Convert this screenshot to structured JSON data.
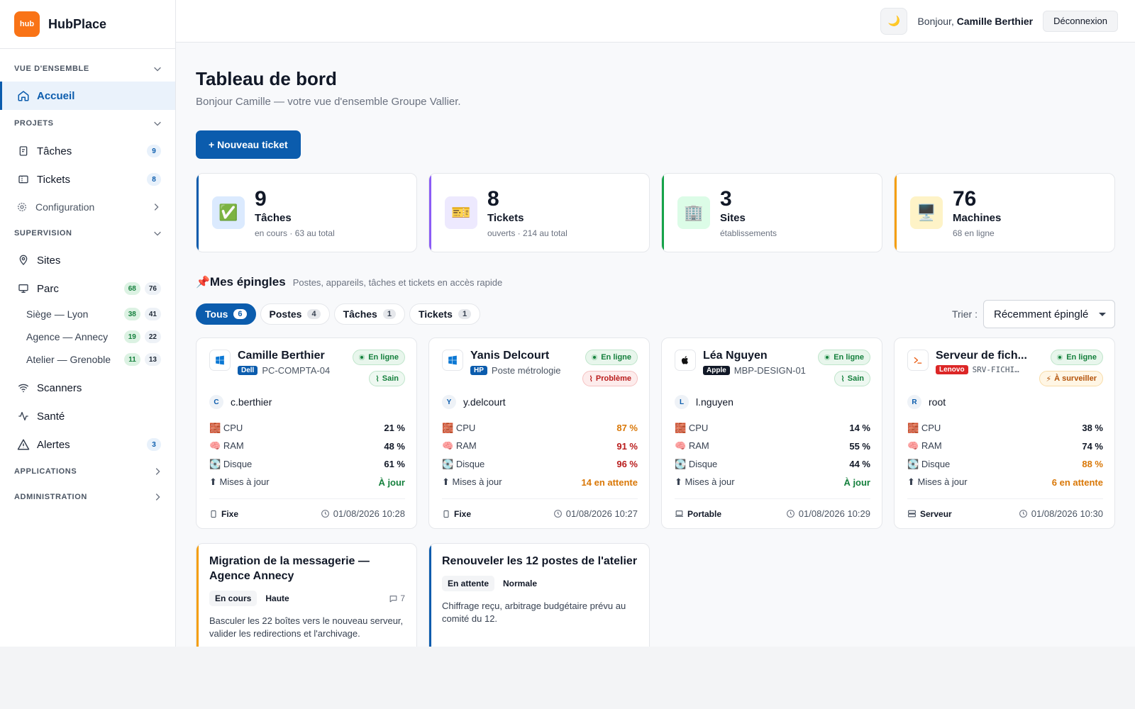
{
  "brand": {
    "logo": "hub",
    "name": "HubPlace"
  },
  "sidebar": {
    "sections": {
      "overview": "VUE D'ENSEMBLE",
      "projects": "PROJETS",
      "supervision": "SUPERVISION",
      "applications": "APPLICATIONS",
      "administration": "ADMINISTRATION"
    },
    "items": {
      "home": "Accueil",
      "tasks": {
        "label": "Tâches",
        "count": "9"
      },
      "tickets": {
        "label": "Tickets",
        "count": "8"
      },
      "config": "Configuration",
      "sites": "Sites",
      "parc": {
        "label": "Parc",
        "online": "68",
        "total": "76"
      },
      "sub": [
        {
          "label": "Siège — Lyon",
          "online": "38",
          "total": "41"
        },
        {
          "label": "Agence — Annecy",
          "online": "19",
          "total": "22"
        },
        {
          "label": "Atelier — Grenoble",
          "online": "11",
          "total": "13"
        }
      ],
      "scanners": "Scanners",
      "health": "Santé",
      "alerts": {
        "label": "Alertes",
        "count": "3"
      }
    }
  },
  "topbar": {
    "theme_icon": "moon",
    "greeting": "Bonjour,",
    "user": "Camille Berthier",
    "logout": "Déconnexion"
  },
  "page": {
    "title": "Tableau de bord",
    "subtitle": "Bonjour Camille — votre vue d'ensemble Groupe Vallier.",
    "new_ticket": "+ Nouveau ticket"
  },
  "stats": [
    {
      "emoji": "✅",
      "value": "9",
      "label": "Tâches",
      "desc": "en cours · 63 au total"
    },
    {
      "emoji": "🎫",
      "value": "8",
      "label": "Tickets",
      "desc": "ouverts · 214 au total"
    },
    {
      "emoji": "🏢",
      "value": "3",
      "label": "Sites",
      "desc": "établissements"
    },
    {
      "emoji": "🖥️",
      "value": "76",
      "label": "Machines",
      "desc": "68 en ligne"
    }
  ],
  "pins": {
    "emoji": "📌",
    "title": "Mes épingles",
    "desc": "Postes, appareils, tâches et tickets en accès rapide",
    "filters": [
      {
        "label": "Tous",
        "count": "6"
      },
      {
        "label": "Postes",
        "count": "4"
      },
      {
        "label": "Tâches",
        "count": "1"
      },
      {
        "label": "Tickets",
        "count": "1"
      }
    ],
    "sort_label": "Trier :",
    "sort_value": "Récemment épinglé"
  },
  "metric_labels": {
    "cpu": "CPU",
    "ram": "RAM",
    "disk": "Disque",
    "updates": "Mises à jour"
  },
  "devices": [
    {
      "name": "Camille Berthier",
      "vendor": "Dell",
      "vendor_color": "#0b5cad",
      "host": "PC-COMPTA-04",
      "status": "En ligne",
      "health": "Sain",
      "user_initial": "C",
      "user": "c.berthier",
      "cpu": "21 %",
      "ram": "48 %",
      "disk": "61 %",
      "updates": "À jour",
      "type": "Fixe",
      "date": "01/08/2026 10:28"
    },
    {
      "name": "Yanis Delcourt",
      "vendor": "HP",
      "vendor_color": "#0b5cad",
      "host": "Poste métrologie",
      "status": "En ligne",
      "health": "Problème",
      "user_initial": "Y",
      "user": "y.delcourt",
      "cpu": "87 %",
      "ram": "91 %",
      "disk": "96 %",
      "updates": "14 en attente",
      "type": "Fixe",
      "date": "01/08/2026 10:27"
    },
    {
      "name": "Léa Nguyen",
      "vendor": "Apple",
      "vendor_color": "#111827",
      "host": "MBP-DESIGN-01",
      "status": "En ligne",
      "health": "Sain",
      "user_initial": "L",
      "user": "l.nguyen",
      "cpu": "14 %",
      "ram": "55 %",
      "disk": "44 %",
      "updates": "À jour",
      "type": "Portable",
      "date": "01/08/2026 10:29"
    },
    {
      "name": "Serveur de fich...",
      "vendor": "Lenovo",
      "vendor_color": "#dc2626",
      "host": "SRV-FICHI…",
      "status": "En ligne",
      "health": "À surveiller",
      "user_initial": "R",
      "user": "root",
      "cpu": "38 %",
      "ram": "74 %",
      "disk": "88 %",
      "updates": "6 en attente",
      "type": "Serveur",
      "date": "01/08/2026 10:30"
    }
  ],
  "tasks": [
    {
      "title": "Migration de la messagerie — Agence Annecy",
      "status": "En cours",
      "priority": "Haute",
      "comments": "7",
      "body": "Basculer les 22 boîtes vers le nouveau serveur, valider les redirections et l'archivage."
    },
    {
      "title": "Renouveler les 12 postes de l'atelier",
      "status": "En attente",
      "priority": "Normale",
      "body": "Chiffrage reçu, arbitrage budgétaire prévu au comité du 12."
    }
  ]
}
